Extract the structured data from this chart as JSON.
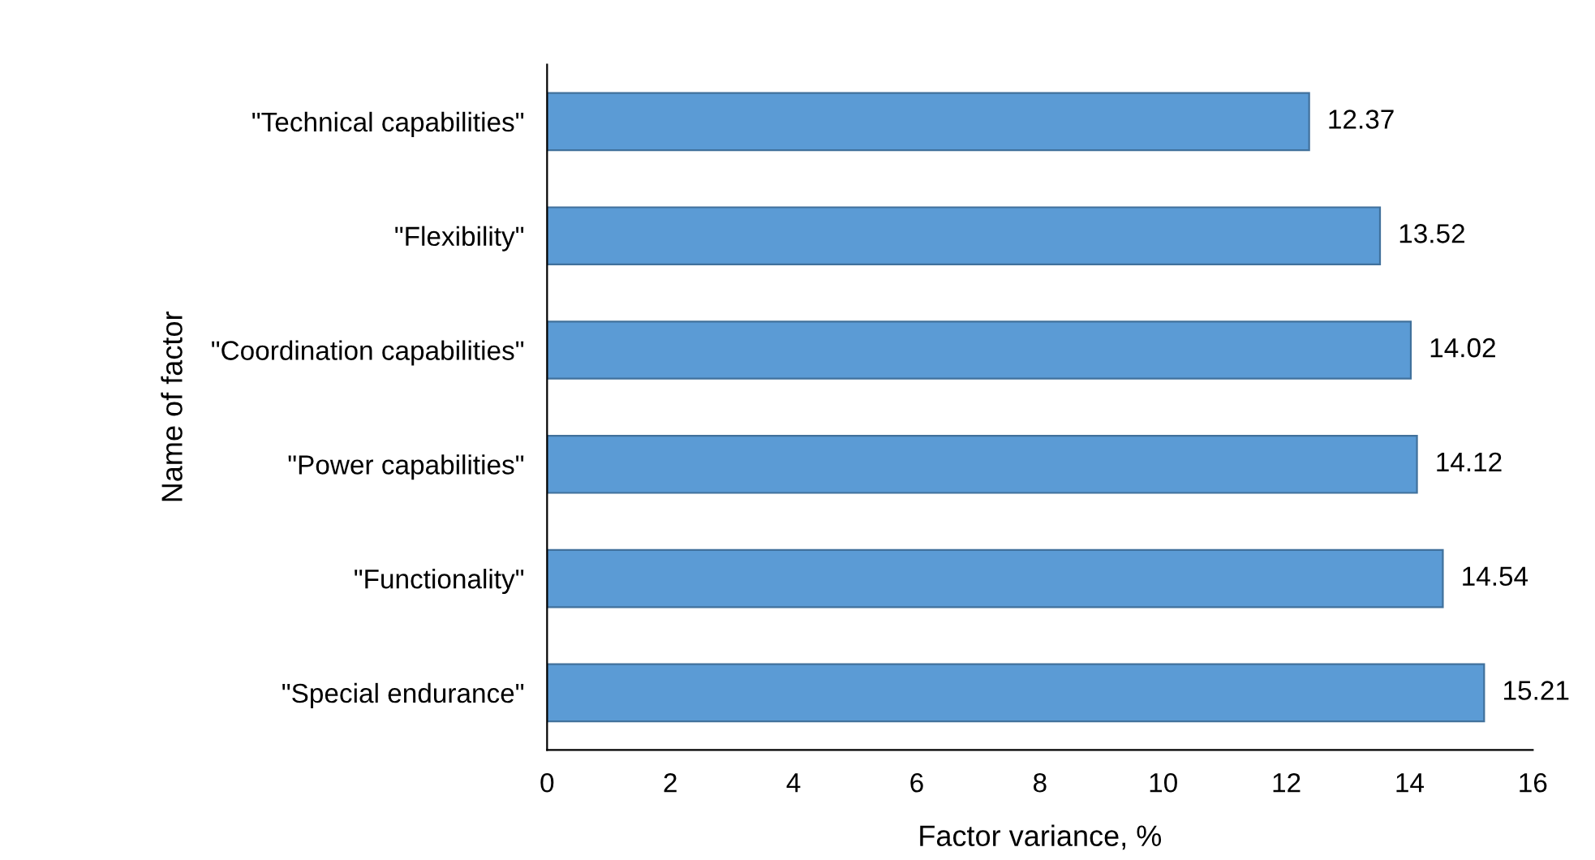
{
  "chart_data": {
    "type": "bar",
    "orientation": "horizontal",
    "xlabel": "Factor variance, %",
    "ylabel": "Name of factor",
    "categories": [
      "\"Technical capabilities\"",
      "\"Flexibility\"",
      "\"Coordination capabilities\"",
      "\"Power capabilities\"",
      "\"Functionality\"",
      "\"Special endurance\""
    ],
    "values": [
      12.37,
      13.52,
      14.02,
      14.12,
      14.54,
      15.21
    ],
    "color": "#5b9bd5",
    "xlim": [
      0,
      16
    ],
    "xticks": [
      0,
      2,
      4,
      6,
      8,
      10,
      12,
      14,
      16
    ],
    "data_labels": true,
    "grid": false,
    "legend": false
  }
}
